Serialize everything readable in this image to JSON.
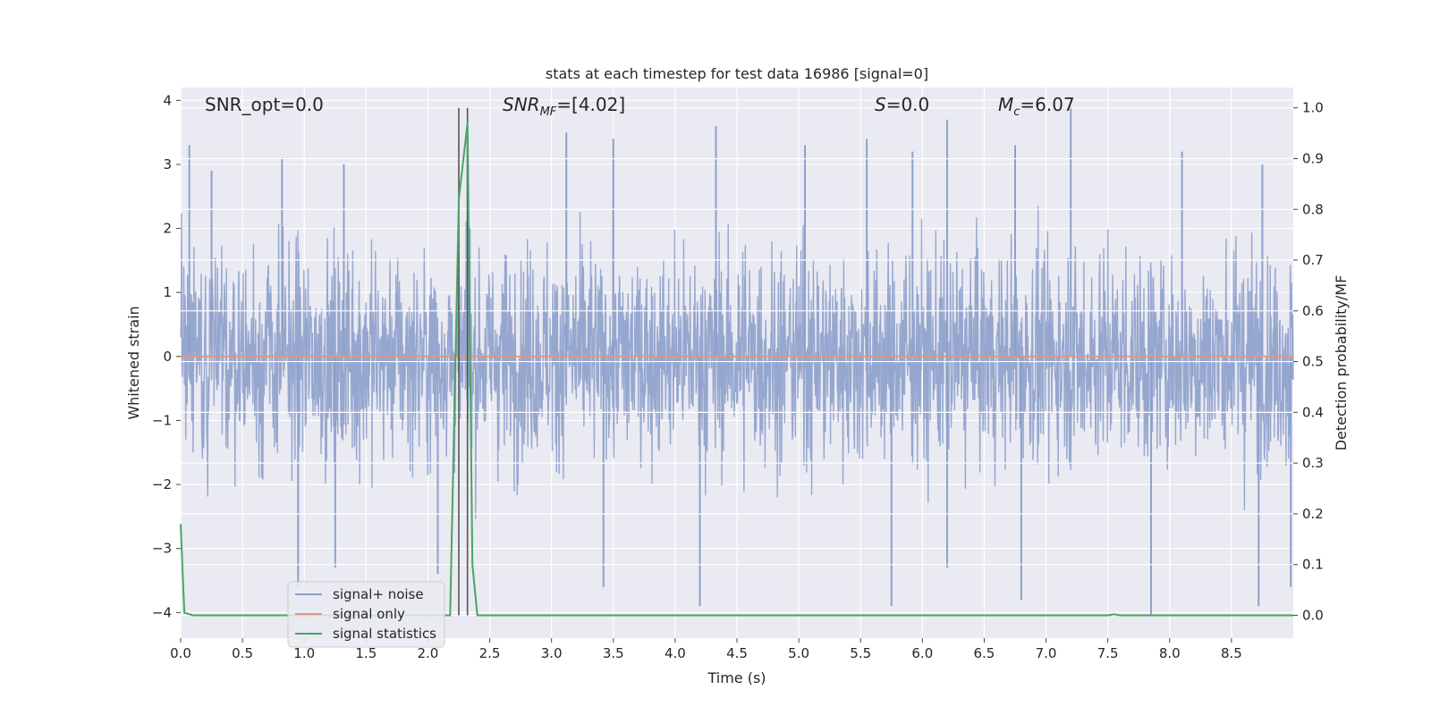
{
  "chart_data": {
    "type": "line",
    "title": "stats at each timestep for test data 16986 [signal=0]",
    "xlabel": "Time (s)",
    "ylabel_left": "Whitened strain",
    "ylabel_right": "Detection probability/MF",
    "xlim": [
      0.0,
      9.0
    ],
    "ylim_left": [
      -4.4,
      4.2
    ],
    "ylim_right": [
      -0.045,
      1.04
    ],
    "x_ticks": [
      "0.0",
      "0.5",
      "1.0",
      "1.5",
      "2.0",
      "2.5",
      "3.0",
      "3.5",
      "4.0",
      "4.5",
      "5.0",
      "5.5",
      "6.0",
      "6.5",
      "7.0",
      "7.5",
      "8.0",
      "8.5"
    ],
    "y_ticks_left": [
      "4",
      "3",
      "2",
      "1",
      "0",
      "−1",
      "−2",
      "−3",
      "−4"
    ],
    "y_ticks_right": [
      "1.0",
      "0.9",
      "0.8",
      "0.7",
      "0.6",
      "0.5",
      "0.4",
      "0.3",
      "0.2",
      "0.1",
      "0.0"
    ],
    "annotations": {
      "snr_opt": "SNR_opt=0.0",
      "snr_mf_main": "SNR",
      "snr_mf_sub": "MF",
      "snr_mf_value": "=[4.02]",
      "s_main": "S",
      "s_value": "=0.0",
      "mc_main": "M",
      "mc_sub": "c",
      "mc_value": "=6.07"
    },
    "series": [
      {
        "name": "signal+ noise",
        "color": "#8da0cb",
        "description_range": [
          -4.0,
          3.9
        ],
        "spike_x": [
          0.07,
          0.25,
          0.82,
          1.32,
          2.32,
          3.12,
          3.5,
          4.33,
          5.05,
          5.55,
          5.92,
          6.2,
          6.75,
          7.2,
          8.1,
          8.75
        ],
        "spike_y": [
          3.3,
          2.9,
          3.1,
          3.0,
          3.6,
          3.5,
          3.4,
          3.6,
          3.3,
          3.4,
          3.2,
          3.7,
          3.3,
          3.9,
          3.2,
          3.0
        ],
        "dip_x": [
          0.95,
          1.25,
          2.08,
          3.42,
          4.2,
          5.75,
          6.2,
          6.8,
          7.85,
          8.72,
          8.98
        ],
        "dip_y": [
          -3.6,
          -3.3,
          -3.4,
          -3.6,
          -3.9,
          -3.9,
          -3.3,
          -3.8,
          -4.05,
          -3.9,
          -3.6
        ]
      },
      {
        "name": "signal only",
        "color": "#e1977f",
        "x": [
          0.0,
          9.0
        ],
        "y": [
          0.0,
          0.0
        ]
      },
      {
        "name": "signal statistics",
        "color": "#4aa564",
        "axis": "right",
        "x": [
          0.0,
          0.03,
          0.1,
          2.18,
          2.25,
          2.32,
          2.36,
          2.4,
          2.44,
          2.5,
          7.5,
          7.55,
          7.6,
          9.0
        ],
        "y": [
          0.18,
          0.005,
          0.0,
          0.0,
          0.82,
          0.97,
          0.1,
          0.0,
          0.0,
          0.0,
          0.0,
          0.002,
          0.0,
          0.0
        ]
      }
    ],
    "vertical_lines": [
      2.25,
      2.32
    ],
    "vertical_line_color": "#555555",
    "legend": {
      "placement": "lower-left",
      "entries": [
        "signal+ noise",
        "signal only",
        "signal statistics"
      ]
    },
    "background_color": "#eaeaf2",
    "grid": true
  }
}
